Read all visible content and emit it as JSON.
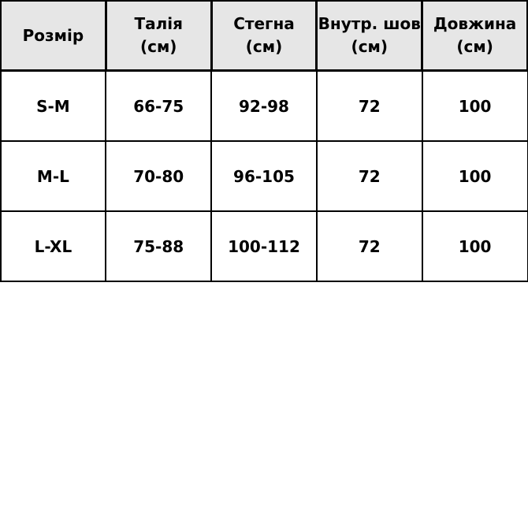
{
  "table": {
    "headers": [
      [
        "Розмір",
        ""
      ],
      [
        "Талія",
        "(см)"
      ],
      [
        "Стегна",
        "(см)"
      ],
      [
        "Внутр. шов",
        "(см)"
      ],
      [
        "Довжина",
        "(см)"
      ]
    ],
    "rows": [
      [
        "S-M",
        "66-75",
        "92-98",
        "72",
        "100"
      ],
      [
        "M-L",
        "70-80",
        "96-105",
        "72",
        "100"
      ],
      [
        "L-XL",
        "75-88",
        "100-112",
        "72",
        "100"
      ]
    ],
    "header_bg": "#e6e6e6"
  }
}
